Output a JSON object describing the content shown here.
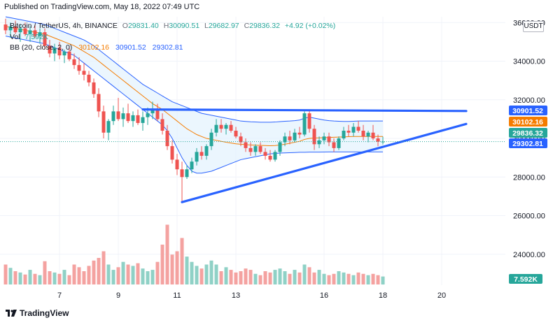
{
  "header": {
    "published": "Published on TradingView.com, May 18, 2022 07:49 UTC"
  },
  "legend": {
    "symbol": "Bitcoin / TetherUS, 4h, BINANCE",
    "ohlc": {
      "o_label": "O",
      "o": "29831.40",
      "h_label": "H",
      "h": "30090.51",
      "l_label": "L",
      "l": "29682.97",
      "c_label": "C",
      "c": "29836.32",
      "change": "+4.92 (+0.02%)"
    },
    "vol_label": "Vol",
    "vol_value": "7.592K",
    "bb_label": "BB (20, close, 2, 0)",
    "bb_basis": "30102.16",
    "bb_upper": "30901.52",
    "bb_lower": "29302.81"
  },
  "currency": "USDT",
  "footer": {
    "brand": "TradingView"
  },
  "colors": {
    "up": "#26a69a",
    "down": "#ef5350",
    "vol_up": "#8fd1c6",
    "vol_down": "#f4a2a0",
    "band_fill": "#e3f2fd",
    "band_line": "#2962ff",
    "basis": "#f57c00",
    "trendline": "#2962ff",
    "last_price": "#26a69a"
  },
  "chart_data": {
    "type": "candlestick",
    "timeframe": "4h",
    "x_tick_labels": [
      "7",
      "9",
      "11",
      "13",
      "16",
      "18",
      "20"
    ],
    "y_tick_labels": [
      "24000.00",
      "26000.00",
      "28000.00",
      "30000.00",
      "32000.00",
      "34000.00",
      "36000.00"
    ],
    "ylim": [
      22400,
      36300
    ],
    "price_tags": [
      {
        "name": "BB upper",
        "value": "30901.52",
        "color": "#2962ff"
      },
      {
        "name": "BB basis",
        "value": "30102.16",
        "color": "#f57c00"
      },
      {
        "name": "Last price",
        "value": "29836.32",
        "color": "#26a69a"
      },
      {
        "name": "BB lower",
        "value": "29302.81",
        "color": "#2962ff"
      }
    ],
    "volume_tag": "7.592K",
    "candles": [
      [
        35900,
        36200,
        35400,
        35600
      ],
      [
        35600,
        36000,
        35200,
        35800
      ],
      [
        35800,
        36100,
        35400,
        35500
      ],
      [
        35500,
        35900,
        35000,
        35700
      ],
      [
        35700,
        36000,
        35300,
        35400
      ],
      [
        35400,
        35800,
        35000,
        35600
      ],
      [
        35600,
        35900,
        35200,
        35300
      ],
      [
        35300,
        35700,
        34900,
        35500
      ],
      [
        35500,
        35700,
        34600,
        34800
      ],
      [
        34800,
        35100,
        34200,
        34400
      ],
      [
        34400,
        34900,
        34000,
        34700
      ],
      [
        34700,
        35000,
        34100,
        34300
      ],
      [
        34300,
        34600,
        33900,
        34500
      ],
      [
        34500,
        34800,
        34000,
        34100
      ],
      [
        34100,
        34400,
        33600,
        33800
      ],
      [
        33800,
        34200,
        33300,
        33500
      ],
      [
        33500,
        33900,
        33000,
        33300
      ],
      [
        33300,
        33500,
        32700,
        32900
      ],
      [
        32900,
        33100,
        32100,
        32300
      ],
      [
        32300,
        32600,
        31100,
        31400
      ],
      [
        31400,
        31700,
        30000,
        30300
      ],
      [
        30300,
        31000,
        29900,
        30900
      ],
      [
        30900,
        31700,
        30700,
        31400
      ],
      [
        31400,
        32100,
        30900,
        31000
      ],
      [
        31000,
        31600,
        30600,
        31300
      ],
      [
        31300,
        31800,
        30800,
        30900
      ],
      [
        30900,
        31400,
        30600,
        31200
      ],
      [
        31200,
        31500,
        30700,
        30800
      ],
      [
        30800,
        31400,
        30400,
        31100
      ],
      [
        31100,
        31600,
        30700,
        31300
      ],
      [
        31300,
        31900,
        31000,
        31500
      ],
      [
        31500,
        31800,
        30900,
        31000
      ],
      [
        31000,
        31300,
        30200,
        30400
      ],
      [
        30400,
        30700,
        29400,
        29600
      ],
      [
        29600,
        29900,
        28700,
        28900
      ],
      [
        28900,
        29200,
        28100,
        28400
      ],
      [
        28400,
        28800,
        26700,
        28000
      ],
      [
        28000,
        28600,
        27900,
        28400
      ],
      [
        28400,
        29000,
        28200,
        28800
      ],
      [
        28800,
        29500,
        28600,
        29300
      ],
      [
        29300,
        29600,
        28900,
        29100
      ],
      [
        29100,
        29700,
        28900,
        29600
      ],
      [
        29600,
        30500,
        29400,
        30300
      ],
      [
        30300,
        31000,
        30100,
        30700
      ],
      [
        30700,
        31000,
        30300,
        30500
      ],
      [
        30500,
        30800,
        30200,
        30700
      ],
      [
        30700,
        30900,
        30300,
        30400
      ],
      [
        30400,
        30600,
        30000,
        30100
      ],
      [
        30100,
        30300,
        29600,
        29800
      ],
      [
        29800,
        30000,
        29300,
        29500
      ],
      [
        29500,
        29800,
        29100,
        29300
      ],
      [
        29300,
        29700,
        29100,
        29600
      ],
      [
        29600,
        29800,
        29200,
        29300
      ],
      [
        29300,
        29500,
        28900,
        29100
      ],
      [
        29100,
        29400,
        28800,
        28900
      ],
      [
        28900,
        29400,
        28800,
        29300
      ],
      [
        29300,
        29900,
        29100,
        29800
      ],
      [
        29800,
        30300,
        29600,
        30100
      ],
      [
        30100,
        30400,
        29700,
        29900
      ],
      [
        29900,
        30500,
        29800,
        30300
      ],
      [
        30300,
        30600,
        30000,
        30200
      ],
      [
        30200,
        31400,
        30100,
        31300
      ],
      [
        31300,
        31500,
        30300,
        30500
      ],
      [
        30500,
        30700,
        29400,
        29700
      ],
      [
        29700,
        30100,
        29500,
        29900
      ],
      [
        29900,
        30300,
        29700,
        30100
      ],
      [
        30100,
        30300,
        29600,
        29800
      ],
      [
        29800,
        30000,
        29300,
        29500
      ],
      [
        29500,
        30100,
        29400,
        30000
      ],
      [
        30000,
        30600,
        29900,
        30400
      ],
      [
        30400,
        30700,
        30100,
        30300
      ],
      [
        30300,
        30800,
        30100,
        30600
      ],
      [
        30600,
        30900,
        30300,
        30400
      ],
      [
        30400,
        30700,
        29900,
        30100
      ],
      [
        30100,
        30400,
        29800,
        30300
      ],
      [
        30300,
        30700,
        29900,
        30000
      ],
      [
        30000,
        30200,
        29600,
        29831
      ],
      [
        29831,
        30091,
        29683,
        29836
      ]
    ],
    "volume_heights": [
      0.3,
      0.25,
      0.2,
      0.18,
      0.15,
      0.22,
      0.16,
      0.14,
      0.35,
      0.2,
      0.18,
      0.16,
      0.22,
      0.14,
      0.3,
      0.26,
      0.2,
      0.28,
      0.36,
      0.4,
      0.5,
      0.3,
      0.22,
      0.26,
      0.34,
      0.3,
      0.28,
      0.32,
      0.24,
      0.2,
      0.22,
      0.34,
      0.6,
      0.9,
      0.45,
      0.5,
      0.7,
      0.42,
      0.34,
      0.28,
      0.24,
      0.3,
      0.36,
      0.3,
      0.2,
      0.26,
      0.22,
      0.18,
      0.2,
      0.24,
      0.22,
      0.16,
      0.14,
      0.2,
      0.18,
      0.22,
      0.24,
      0.2,
      0.16,
      0.22,
      0.18,
      0.3,
      0.26,
      0.18,
      0.22,
      0.16,
      0.14,
      0.16,
      0.2,
      0.18,
      0.16,
      0.14,
      0.18,
      0.16,
      0.14,
      0.16,
      0.14,
      0.12
    ],
    "bollinger_upper": [
      36300,
      36250,
      36200,
      36150,
      36100,
      36050,
      36000,
      35950,
      35900,
      35800,
      35700,
      35600,
      35500,
      35400,
      35300,
      35200,
      35100,
      34950,
      34800,
      34600,
      34400,
      34200,
      34000,
      33800,
      33600,
      33400,
      33200,
      33000,
      32800,
      32650,
      32500,
      32350,
      32200,
      32050,
      31900,
      31800,
      31700,
      31600,
      31500,
      31400,
      31300,
      31250,
      31200,
      31150,
      31100,
      31050,
      31000,
      30950,
      30900,
      30880,
      30860,
      30850,
      30840,
      30840,
      30840,
      30850,
      30870,
      30890,
      30900,
      30920,
      30950,
      31050,
      31100,
      31050,
      31000,
      30950,
      30920,
      30900,
      30890,
      30880,
      30880,
      30890,
      30900,
      30900,
      30900,
      30902,
      30902,
      30902
    ],
    "bollinger_basis": [
      35800,
      35750,
      35700,
      35650,
      35600,
      35550,
      35500,
      35450,
      35400,
      35300,
      35200,
      35100,
      35000,
      34900,
      34800,
      34650,
      34500,
      34350,
      34200,
      34000,
      33800,
      33600,
      33400,
      33200,
      33000,
      32800,
      32600,
      32400,
      32200,
      32000,
      31800,
      31650,
      31500,
      31300,
      31100,
      30900,
      30700,
      30500,
      30350,
      30200,
      30100,
      30000,
      29950,
      29900,
      29850,
      29800,
      29760,
      29720,
      29700,
      29680,
      29660,
      29650,
      29640,
      29630,
      29620,
      29630,
      29660,
      29700,
      29750,
      29800,
      29850,
      29950,
      30000,
      30020,
      30030,
      30040,
      30050,
      30060,
      30070,
      30080,
      30090,
      30100,
      30100,
      30100,
      30100,
      30102,
      30102,
      30102
    ],
    "bollinger_lower": [
      35300,
      35250,
      35200,
      35150,
      35100,
      35050,
      35000,
      34950,
      34900,
      34800,
      34700,
      34600,
      34500,
      34400,
      34300,
      34100,
      33900,
      33700,
      33500,
      33300,
      33100,
      32900,
      32700,
      32500,
      32300,
      32100,
      31900,
      31700,
      31500,
      31300,
      31100,
      30900,
      30700,
      30400,
      30000,
      29500,
      29000,
      28600,
      28300,
      28200,
      28200,
      28250,
      28300,
      28400,
      28500,
      28600,
      28700,
      28800,
      28900,
      28950,
      29000,
      29050,
      29100,
      29150,
      29200,
      29220,
      29240,
      29250,
      29260,
      29270,
      29280,
      29280,
      29290,
      29290,
      29290,
      29295,
      29298,
      29300,
      29300,
      29300,
      29300,
      29300,
      29300,
      29302,
      29302,
      29302,
      29302,
      29302
    ],
    "trendlines": [
      {
        "name": "resistance",
        "from": {
          "bar": 28,
          "price": 31500
        },
        "to": {
          "bar": 94,
          "price": 31420
        }
      },
      {
        "name": "support",
        "from": {
          "bar": 36,
          "price": 26700
        },
        "to": {
          "bar": 94,
          "price": 30750
        }
      }
    ]
  }
}
